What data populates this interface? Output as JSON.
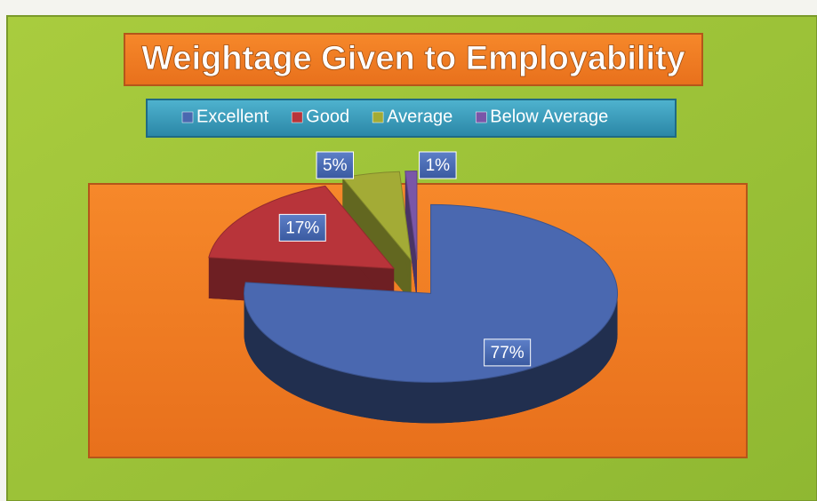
{
  "chart_data": {
    "type": "pie",
    "title": "Weightage Given to Employability",
    "categories": [
      "Excellent",
      "Good",
      "Average",
      "Below Average"
    ],
    "values": [
      77,
      17,
      5,
      1
    ],
    "value_labels": [
      "77%",
      "17%",
      "5%",
      "1%"
    ],
    "colors": [
      "#4a68b0",
      "#b8343a",
      "#a3ab36",
      "#7a56a8"
    ],
    "legend": "top"
  }
}
